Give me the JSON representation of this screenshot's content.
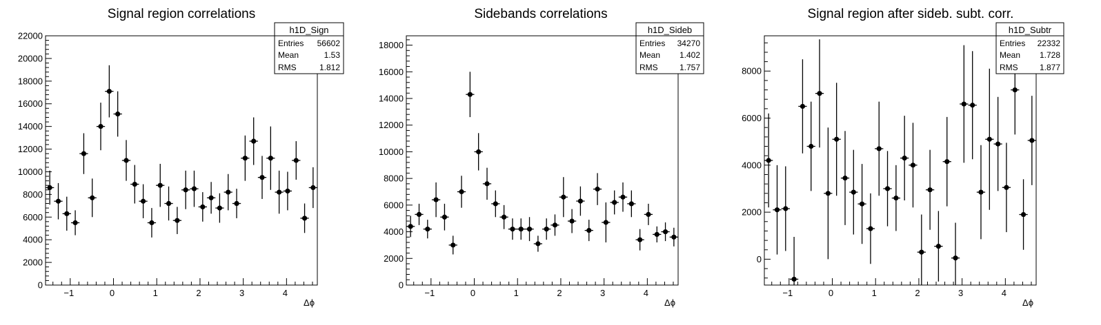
{
  "chart_data": [
    {
      "type": "scatter",
      "title": "Signal region correlations",
      "xlabel": "Δϕ",
      "ylabel": "",
      "xlim": [
        -1.571,
        4.712
      ],
      "ylim": [
        0,
        22000
      ],
      "xticks": [
        -1,
        0,
        1,
        2,
        3,
        4
      ],
      "yticks": [
        0,
        2000,
        4000,
        6000,
        8000,
        10000,
        12000,
        14000,
        16000,
        18000,
        20000,
        22000
      ],
      "bin_width": 0.196,
      "x": [
        -1.473,
        -1.276,
        -1.08,
        -0.884,
        -0.687,
        -0.491,
        -0.295,
        -0.098,
        0.098,
        0.295,
        0.491,
        0.687,
        0.884,
        1.08,
        1.276,
        1.473,
        1.669,
        1.865,
        2.062,
        2.258,
        2.454,
        2.651,
        2.847,
        3.043,
        3.24,
        3.436,
        3.633,
        3.829,
        4.025,
        4.222,
        4.418,
        4.614
      ],
      "y": [
        8600,
        7400,
        6300,
        5500,
        11600,
        7700,
        14000,
        17100,
        15100,
        11000,
        8900,
        7400,
        5500,
        8800,
        7200,
        5700,
        8400,
        8500,
        6900,
        7700,
        6800,
        8200,
        7200,
        11200,
        12700,
        9500,
        11200,
        8200,
        8300,
        11000,
        5900,
        8600
      ],
      "err": [
        1500,
        1600,
        1500,
        1100,
        1800,
        1700,
        2100,
        2300,
        2000,
        1800,
        1700,
        1500,
        1300,
        1900,
        1500,
        1200,
        1700,
        1600,
        1300,
        1400,
        1300,
        1600,
        1300,
        2000,
        2100,
        1900,
        2800,
        1900,
        1700,
        1700,
        1300,
        1800
      ],
      "stats": {
        "name": "h1D_Sign",
        "entries_label": "Entries",
        "entries": "56602",
        "mean_label": "Mean",
        "mean": "1.53",
        "rms_label": "RMS",
        "rms": "1.812"
      }
    },
    {
      "type": "scatter",
      "title": "Sidebands correlations",
      "xlabel": "Δϕ",
      "ylabel": "",
      "xlim": [
        -1.571,
        4.712
      ],
      "ylim": [
        0,
        18700
      ],
      "xticks": [
        -1,
        0,
        1,
        2,
        3,
        4
      ],
      "yticks": [
        0,
        2000,
        4000,
        6000,
        8000,
        10000,
        12000,
        14000,
        16000,
        18000
      ],
      "bin_width": 0.196,
      "x": [
        -1.473,
        -1.276,
        -1.08,
        -0.884,
        -0.687,
        -0.491,
        -0.295,
        -0.098,
        0.098,
        0.295,
        0.491,
        0.687,
        0.884,
        1.08,
        1.276,
        1.473,
        1.669,
        1.865,
        2.062,
        2.258,
        2.454,
        2.651,
        2.847,
        3.043,
        3.24,
        3.436,
        3.633,
        3.829,
        4.025,
        4.222,
        4.418,
        4.614
      ],
      "y": [
        4400,
        5300,
        4200,
        6400,
        5100,
        3000,
        7000,
        14300,
        10000,
        7600,
        6100,
        5100,
        4200,
        4200,
        4200,
        3100,
        4200,
        4500,
        6600,
        4800,
        6300,
        4100,
        7200,
        4700,
        6200,
        6600,
        6100,
        3400,
        5300,
        3800,
        4000,
        3600
      ],
      "err": [
        800,
        800,
        700,
        1300,
        1000,
        700,
        1200,
        1700,
        1400,
        1200,
        1000,
        900,
        800,
        800,
        900,
        600,
        800,
        800,
        1500,
        900,
        1100,
        800,
        1200,
        1500,
        900,
        1100,
        1000,
        800,
        800,
        600,
        700,
        700
      ],
      "stats": {
        "name": "h1D_Sideb",
        "entries_label": "Entries",
        "entries": "34270",
        "mean_label": "Mean",
        "mean": "1.402",
        "rms_label": "RMS",
        "rms": "1.757"
      }
    },
    {
      "type": "scatter",
      "title": "Signal region after sideb. subt. corr.",
      "xlabel": "Δϕ",
      "ylabel": "",
      "xlim": [
        -1.571,
        4.712
      ],
      "ylim": [
        -1100,
        9500
      ],
      "xticks": [
        -1,
        0,
        1,
        2,
        3,
        4
      ],
      "yticks": [
        0,
        2000,
        4000,
        6000,
        8000
      ],
      "bin_width": 0.196,
      "x": [
        -1.473,
        -1.276,
        -1.08,
        -0.884,
        -0.687,
        -0.491,
        -0.295,
        -0.098,
        0.098,
        0.295,
        0.491,
        0.687,
        0.884,
        1.08,
        1.276,
        1.473,
        1.669,
        1.865,
        2.062,
        2.258,
        2.454,
        2.651,
        2.847,
        3.043,
        3.24,
        3.436,
        3.633,
        3.829,
        4.025,
        4.222,
        4.418,
        4.614
      ],
      "y": [
        4200,
        2100,
        2150,
        -850,
        6500,
        4800,
        7050,
        2800,
        5100,
        3450,
        2850,
        2350,
        1300,
        4700,
        3000,
        2600,
        4300,
        4000,
        300,
        2950,
        550,
        4150,
        50,
        6600,
        6550,
        2850,
        5100,
        4900,
        3050,
        7200,
        1900,
        5050
      ],
      "err": [
        2000,
        1900,
        1800,
        1800,
        2000,
        1900,
        2300,
        2800,
        2400,
        2000,
        1800,
        1700,
        1500,
        2000,
        1600,
        1400,
        1800,
        1800,
        1600,
        1700,
        1500,
        1900,
        1500,
        2500,
        2300,
        2000,
        3000,
        2000,
        1900,
        1900,
        1500,
        1900
      ],
      "stats": {
        "name": "h1D_Subtr",
        "entries_label": "Entries",
        "entries": "22332",
        "mean_label": "Mean",
        "mean": "1.728",
        "rms_label": "RMS",
        "rms": "1.877"
      }
    }
  ]
}
